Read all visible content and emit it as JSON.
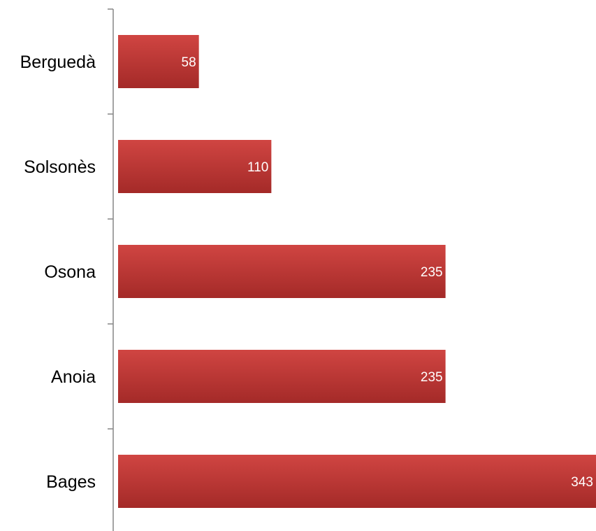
{
  "chart_data": {
    "type": "bar",
    "orientation": "horizontal",
    "categories": [
      "Berguedà",
      "Solsonès",
      "Osona",
      "Anoia",
      "Bages"
    ],
    "values": [
      58,
      110,
      235,
      235,
      343
    ],
    "data_labels": [
      "58",
      "110",
      "235",
      "235",
      "343"
    ],
    "xlim": [
      0,
      343
    ],
    "grid": false,
    "legend": "none",
    "colors": {
      "bar_top": "#d04542",
      "bar_bottom": "#a42a28",
      "axis": "#868686"
    }
  }
}
